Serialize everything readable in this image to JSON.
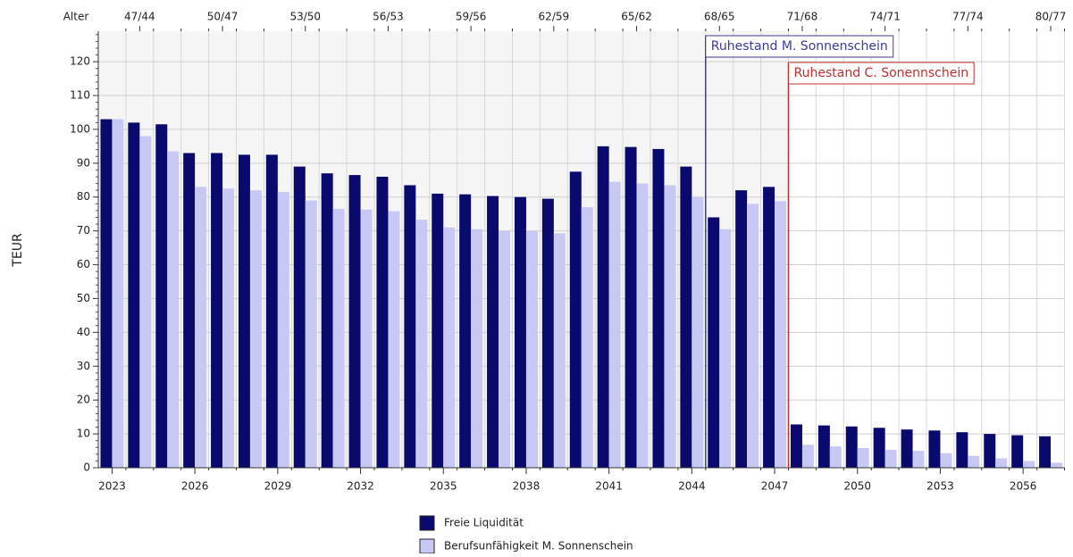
{
  "chart_data": {
    "type": "bar",
    "y_label": "TEUR",
    "top_axis_label": "Alter",
    "x": [
      2023,
      2024,
      2025,
      2026,
      2027,
      2028,
      2029,
      2030,
      2031,
      2032,
      2033,
      2034,
      2035,
      2036,
      2037,
      2038,
      2039,
      2040,
      2041,
      2042,
      2043,
      2044,
      2045,
      2046,
      2047,
      2048,
      2049,
      2050,
      2051,
      2052,
      2053,
      2054,
      2055,
      2056,
      2057
    ],
    "xlim": [
      2022.5,
      2057.5
    ],
    "xticks": [
      2023,
      2026,
      2029,
      2032,
      2035,
      2038,
      2041,
      2044,
      2047,
      2050,
      2053,
      2056
    ],
    "top_ticks": [
      {
        "value": 2024,
        "label": "47/44"
      },
      {
        "value": 2027,
        "label": "50/47"
      },
      {
        "value": 2030,
        "label": "53/50"
      },
      {
        "value": 2033,
        "label": "56/53"
      },
      {
        "value": 2036,
        "label": "59/56"
      },
      {
        "value": 2039,
        "label": "62/59"
      },
      {
        "value": 2042,
        "label": "65/62"
      },
      {
        "value": 2045,
        "label": "68/65"
      },
      {
        "value": 2048,
        "label": "71/68"
      },
      {
        "value": 2051,
        "label": "74/71"
      },
      {
        "value": 2054,
        "label": "77/74"
      },
      {
        "value": 2057,
        "label": "80/77"
      }
    ],
    "ylim": [
      0,
      129
    ],
    "yticks": [
      0,
      10,
      20,
      30,
      40,
      50,
      60,
      70,
      80,
      90,
      100,
      110,
      120
    ],
    "grid": true,
    "series": [
      {
        "name": "Freie Liquidität",
        "color": "#0a0a6e",
        "values": [
          103,
          102,
          101.5,
          93,
          93,
          92.5,
          92.5,
          89,
          87,
          86.5,
          86,
          83.5,
          81,
          80.8,
          80.3,
          80,
          79.5,
          87.5,
          95,
          94.8,
          94.2,
          89,
          74,
          82,
          83,
          12.8,
          12.5,
          12.2,
          11.8,
          11.3,
          11,
          10.5,
          10,
          9.6,
          9.3
        ]
      },
      {
        "name": "Berufsunfähigkeit M. Sonnenschein",
        "color": "#c8c8f5",
        "values": [
          103,
          98,
          93.5,
          83,
          82.5,
          82,
          81.5,
          79,
          76.5,
          76.3,
          75.8,
          73.3,
          71,
          70.5,
          70,
          70,
          69.3,
          77,
          84.5,
          84,
          83.5,
          80,
          70.5,
          78,
          78.8,
          6.8,
          6.3,
          5.8,
          5.3,
          5,
          4.3,
          3.5,
          2.8,
          2,
          1.5
        ]
      }
    ],
    "annotations": [
      {
        "label": "Ruhestand M. Sonnenschein",
        "x": 2044.5,
        "color": "#3c3c96"
      },
      {
        "label": "Ruhestand C. Sonennschein",
        "x": 2047.5,
        "color": "#c03030"
      }
    ]
  }
}
